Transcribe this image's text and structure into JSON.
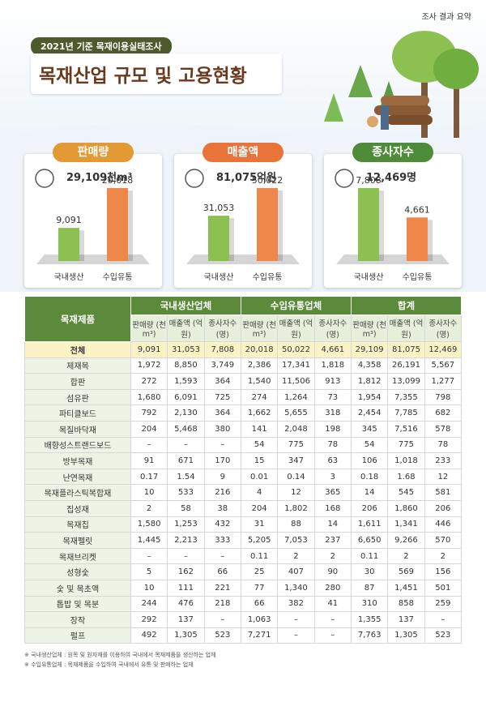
{
  "corner_label": "조사 결과 요약",
  "header": {
    "subtitle": "2021년 기준 목재이용실태조사",
    "title": "목재산업 규모 및 고용현황"
  },
  "panels": [
    {
      "title": "판매량",
      "color": "#e49a34",
      "total": "29,109천m³",
      "categories": [
        "국내생산",
        "수입유통"
      ],
      "values": [
        9091,
        20018
      ],
      "value_labels": [
        "9,091",
        "20,018"
      ],
      "bar_colors": [
        "#8cc152",
        "#f0874a"
      ]
    },
    {
      "title": "매출액",
      "color": "#e8743a",
      "total": "81,075억원",
      "categories": [
        "국내생산",
        "수입유통"
      ],
      "values": [
        31053,
        50022
      ],
      "value_labels": [
        "31,053",
        "50,022"
      ],
      "bar_colors": [
        "#8cc152",
        "#f0874a"
      ]
    },
    {
      "title": "종사자수",
      "color": "#4e8c3a",
      "total": "12,469명",
      "categories": [
        "국내생산",
        "수입유통"
      ],
      "values": [
        7808,
        4661
      ],
      "value_labels": [
        "7,808",
        "4,661"
      ],
      "bar_colors": [
        "#8cc152",
        "#f0874a"
      ]
    }
  ],
  "table": {
    "corner": "목재제품",
    "groups": [
      "국내생산업체",
      "수입유통업체",
      "합계"
    ],
    "columns": [
      "판매량 (천m³)",
      "매출액 (억원)",
      "종사자수 (명)"
    ],
    "rows": [
      [
        "전체",
        "9,091",
        "31,053",
        "7,808",
        "20,018",
        "50,022",
        "4,661",
        "29,109",
        "81,075",
        "12,469"
      ],
      [
        "제재목",
        "1,972",
        "8,850",
        "3,749",
        "2,386",
        "17,341",
        "1,818",
        "4,358",
        "26,191",
        "5,567"
      ],
      [
        "합판",
        "272",
        "1,593",
        "364",
        "1,540",
        "11,506",
        "913",
        "1,812",
        "13,099",
        "1,277"
      ],
      [
        "섬유판",
        "1,680",
        "6,091",
        "725",
        "274",
        "1,264",
        "73",
        "1,954",
        "7,355",
        "798"
      ],
      [
        "파티클보드",
        "792",
        "2,130",
        "364",
        "1,662",
        "5,655",
        "318",
        "2,454",
        "7,785",
        "682"
      ],
      [
        "목질바닥재",
        "204",
        "5,468",
        "380",
        "141",
        "2,048",
        "198",
        "345",
        "7,516",
        "578"
      ],
      [
        "배향성스트랜드보드",
        "–",
        "–",
        "–",
        "54",
        "775",
        "78",
        "54",
        "775",
        "78"
      ],
      [
        "방부목재",
        "91",
        "671",
        "170",
        "15",
        "347",
        "63",
        "106",
        "1,018",
        "233"
      ],
      [
        "난연목재",
        "0.17",
        "1.54",
        "9",
        "0.01",
        "0.14",
        "3",
        "0.18",
        "1.68",
        "12"
      ],
      [
        "목재플라스틱복합재",
        "10",
        "533",
        "216",
        "4",
        "12",
        "365",
        "14",
        "545",
        "581"
      ],
      [
        "집성재",
        "2",
        "58",
        "38",
        "204",
        "1,802",
        "168",
        "206",
        "1,860",
        "206"
      ],
      [
        "목재칩",
        "1,580",
        "1,253",
        "432",
        "31",
        "88",
        "14",
        "1,611",
        "1,341",
        "446"
      ],
      [
        "목재펠릿",
        "1,445",
        "2,213",
        "333",
        "5,205",
        "7,053",
        "237",
        "6,650",
        "9,266",
        "570"
      ],
      [
        "목재브리켓",
        "–",
        "–",
        "–",
        "0.11",
        "2",
        "2",
        "0.11",
        "2",
        "2"
      ],
      [
        "성형숯",
        "5",
        "162",
        "66",
        "25",
        "407",
        "90",
        "30",
        "569",
        "156"
      ],
      [
        "숯 및 목초액",
        "10",
        "111",
        "221",
        "77",
        "1,340",
        "280",
        "87",
        "1,451",
        "501"
      ],
      [
        "톱밥 및 목분",
        "244",
        "476",
        "218",
        "66",
        "382",
        "41",
        "310",
        "858",
        "259"
      ],
      [
        "장작",
        "292",
        "137",
        "–",
        "1,063",
        "–",
        "–",
        "1,355",
        "137",
        "–"
      ],
      [
        "펄프",
        "492",
        "1,305",
        "523",
        "7,271",
        "–",
        "–",
        "7,763",
        "1,305",
        "523"
      ]
    ]
  },
  "footnotes": [
    "※ 국내생산업체 : 원목 및 원자재를 이용하여 국내에서 목재제품을 생산하는 업체",
    "※ 수입유통업체 : 목재제품을 수입하여 국내에서 유통 및 판매하는 업체"
  ]
}
